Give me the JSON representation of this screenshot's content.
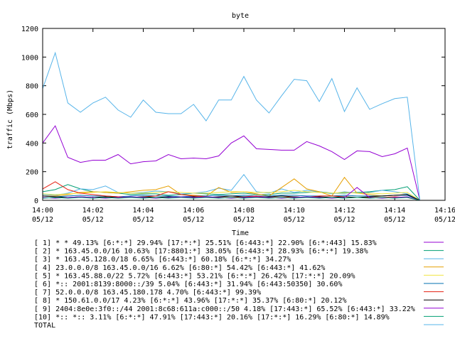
{
  "chart_data": {
    "type": "line",
    "title": "byte",
    "xlabel": "Time",
    "ylabel": "traffic (Mbps)",
    "ylim": [
      0,
      1200
    ],
    "yticks": [
      0,
      200,
      400,
      600,
      800,
      1000,
      1200
    ],
    "xlim": [
      "14:00",
      "14:16"
    ],
    "xticks": [
      {
        "time": "14:00",
        "date": "05/12"
      },
      {
        "time": "14:02",
        "date": "05/12"
      },
      {
        "time": "14:04",
        "date": "05/12"
      },
      {
        "time": "14:06",
        "date": "05/12"
      },
      {
        "time": "14:08",
        "date": "05/12"
      },
      {
        "time": "14:10",
        "date": "05/12"
      },
      {
        "time": "14:12",
        "date": "05/12"
      },
      {
        "time": "14:14",
        "date": "05/12"
      },
      {
        "time": "14:16",
        "date": "05/12"
      }
    ],
    "x": [
      "14:00:00",
      "14:00:30",
      "14:01:00",
      "14:01:30",
      "14:02:00",
      "14:02:30",
      "14:03:00",
      "14:03:30",
      "14:04:00",
      "14:04:30",
      "14:05:00",
      "14:05:30",
      "14:06:00",
      "14:06:30",
      "14:07:00",
      "14:07:30",
      "14:08:00",
      "14:08:30",
      "14:09:00",
      "14:09:30",
      "14:10:00",
      "14:10:30",
      "14:11:00",
      "14:11:30",
      "14:12:00",
      "14:12:30",
      "14:13:00",
      "14:13:30",
      "14:14:00",
      "14:14:30",
      "14:15:00"
    ],
    "grid": false,
    "legend_position": "bottom",
    "series": [
      {
        "label": "[ 1] * * 49.13%  [6:*:*] 29.94% [17:*:*] 25.51% [6:443:*] 22.90% [6:*:443] 15.83%",
        "color": "#9400d3",
        "values": [
          400,
          520,
          300,
          265,
          280,
          280,
          320,
          255,
          270,
          275,
          320,
          290,
          295,
          290,
          310,
          400,
          450,
          360,
          355,
          350,
          350,
          410,
          380,
          340,
          285,
          345,
          340,
          305,
          325,
          365,
          0
        ]
      },
      {
        "label": "[ 2] * 163.45.0.0/16 10.63%  [17:8801:*] 38.05% [6:443:*] 28.93% [6:*:*] 19.38%",
        "color": "#009e73",
        "values": [
          60,
          75,
          110,
          80,
          60,
          55,
          50,
          40,
          45,
          45,
          35,
          40,
          50,
          45,
          40,
          45,
          50,
          40,
          40,
          50,
          50,
          55,
          60,
          50,
          50,
          55,
          60,
          70,
          75,
          95,
          0
        ]
      },
      {
        "label": "[ 3] * 163.45.128.0/18 6.65%  [6:443:*] 60.18% [6:*:*] 34.27%",
        "color": "#56b4e9",
        "values": [
          40,
          35,
          50,
          80,
          75,
          100,
          55,
          50,
          55,
          65,
          60,
          45,
          50,
          60,
          85,
          70,
          180,
          60,
          50,
          80,
          55,
          70,
          60,
          45,
          60,
          50,
          55,
          70,
          60,
          45,
          0
        ]
      },
      {
        "label": "[ 4] 23.0.0.0/8 163.45.0.0/16 6.62%  [6:80:*] 54.42% [6:443:*] 41.62%",
        "color": "#e69f00",
        "values": [
          30,
          30,
          40,
          55,
          60,
          55,
          50,
          60,
          70,
          75,
          100,
          40,
          35,
          30,
          90,
          55,
          60,
          45,
          30,
          90,
          150,
          80,
          60,
          30,
          160,
          50,
          40,
          30,
          35,
          40,
          0
        ]
      },
      {
        "label": "[ 5] * 163.45.88.0/22 5.72%  [6:443:*] 53.21% [6:*:*] 26.42% [17:*:*] 20.09%",
        "color": "#f0e442",
        "values": [
          45,
          40,
          45,
          50,
          55,
          60,
          55,
          50,
          50,
          55,
          60,
          55,
          50,
          50,
          55,
          60,
          60,
          55,
          55,
          60,
          70,
          60,
          55,
          50,
          55,
          50,
          50,
          45,
          50,
          55,
          0
        ]
      },
      {
        "label": "[ 6] *:: 2001:8139:8000::/39 5.04%  [6:443:*] 31.94% [6:443:50350] 30.60%",
        "color": "#0072b2",
        "values": [
          30,
          25,
          30,
          35,
          30,
          30,
          25,
          30,
          35,
          30,
          30,
          25,
          30,
          30,
          35,
          30,
          35,
          30,
          30,
          35,
          35,
          30,
          30,
          30,
          35,
          30,
          30,
          30,
          35,
          35,
          0
        ]
      },
      {
        "label": "[ 7] 52.0.0.0/8 163.45.180.178 4.70%  [6:443:*] 99.39%",
        "color": "#e51e10",
        "values": [
          80,
          130,
          75,
          50,
          40,
          30,
          25,
          20,
          25,
          30,
          60,
          40,
          30,
          25,
          20,
          20,
          25,
          30,
          20,
          20,
          25,
          20,
          30,
          30,
          25,
          20,
          20,
          20,
          25,
          20,
          0
        ]
      },
      {
        "label": "[ 8] * 150.61.0.0/17 4.23%  [6:*:*] 43.96% [17:*:*] 35.37% [6:80:*] 20.12%",
        "color": "#000000",
        "values": [
          30,
          25,
          20,
          25,
          20,
          25,
          20,
          20,
          25,
          20,
          25,
          20,
          25,
          20,
          25,
          30,
          25,
          20,
          25,
          30,
          25,
          20,
          25,
          20,
          25,
          20,
          25,
          30,
          35,
          40,
          0
        ]
      },
      {
        "label": "[ 9] 2404:8e0e:3f0::/44 2001:8c68:611a:c000::/50 4.18%  [17:443:*] 65.52% [6:443:*] 33.22%",
        "color": "#9400d3",
        "values": [
          20,
          15,
          20,
          25,
          20,
          15,
          20,
          25,
          20,
          15,
          20,
          25,
          20,
          25,
          20,
          15,
          20,
          25,
          20,
          15,
          20,
          25,
          20,
          15,
          20,
          90,
          20,
          15,
          20,
          25,
          0
        ]
      },
      {
        "label": "[10] *:: *:: 3.11%  [6:*:*] 47.91% [17:443:*] 20.16% [17:*:*] 16.29% [6:80:*] 14.89%",
        "color": "#009e73",
        "values": [
          15,
          20,
          15,
          20,
          15,
          20,
          15,
          20,
          15,
          20,
          15,
          20,
          15,
          20,
          15,
          20,
          15,
          20,
          15,
          20,
          15,
          20,
          15,
          20,
          15,
          20,
          15,
          20,
          15,
          20,
          0
        ]
      },
      {
        "label": "TOTAL",
        "color": "#56b4e9",
        "values": [
          780,
          1030,
          680,
          615,
          680,
          720,
          630,
          580,
          700,
          615,
          605,
          605,
          670,
          555,
          700,
          700,
          865,
          700,
          610,
          730,
          845,
          835,
          690,
          850,
          620,
          785,
          635,
          675,
          710,
          720,
          0
        ]
      }
    ]
  }
}
